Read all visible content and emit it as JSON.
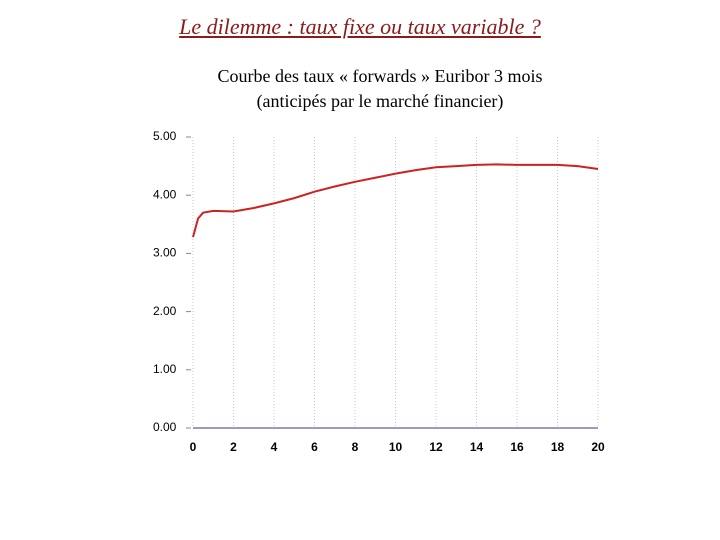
{
  "chart_data": {
    "type": "line",
    "title": "Le dilemme : taux fixe ou taux variable ?",
    "subtitle": [
      "Courbe des taux « forwards » Euribor 3 mois",
      "(anticipés par le marché financier)"
    ],
    "x": [
      0,
      0.25,
      0.5,
      1,
      2,
      3,
      4,
      5,
      6,
      7,
      8,
      9,
      10,
      11,
      12,
      13,
      14,
      15,
      16,
      17,
      18,
      19,
      20
    ],
    "series": [
      {
        "color": "#cc2222",
        "values": [
          3.28,
          3.6,
          3.7,
          3.73,
          3.72,
          3.78,
          3.86,
          3.95,
          4.06,
          4.15,
          4.23,
          4.3,
          4.37,
          4.43,
          4.48,
          4.5,
          4.52,
          4.53,
          4.52,
          4.52,
          4.52,
          4.5,
          4.45
        ]
      }
    ],
    "xlim": [
      0,
      20
    ],
    "xticks": [
      0,
      2,
      4,
      6,
      8,
      10,
      12,
      14,
      16,
      18,
      20
    ],
    "ylim": [
      0,
      5
    ],
    "yticks": [
      {
        "value": 0,
        "label": "0.00"
      },
      {
        "value": 1,
        "label": "1.00"
      },
      {
        "value": 2,
        "label": "2.00"
      },
      {
        "value": 3,
        "label": "3.00"
      },
      {
        "value": 4,
        "label": "4.00"
      },
      {
        "value": 5,
        "label": "5.00"
      }
    ],
    "grid": true
  }
}
